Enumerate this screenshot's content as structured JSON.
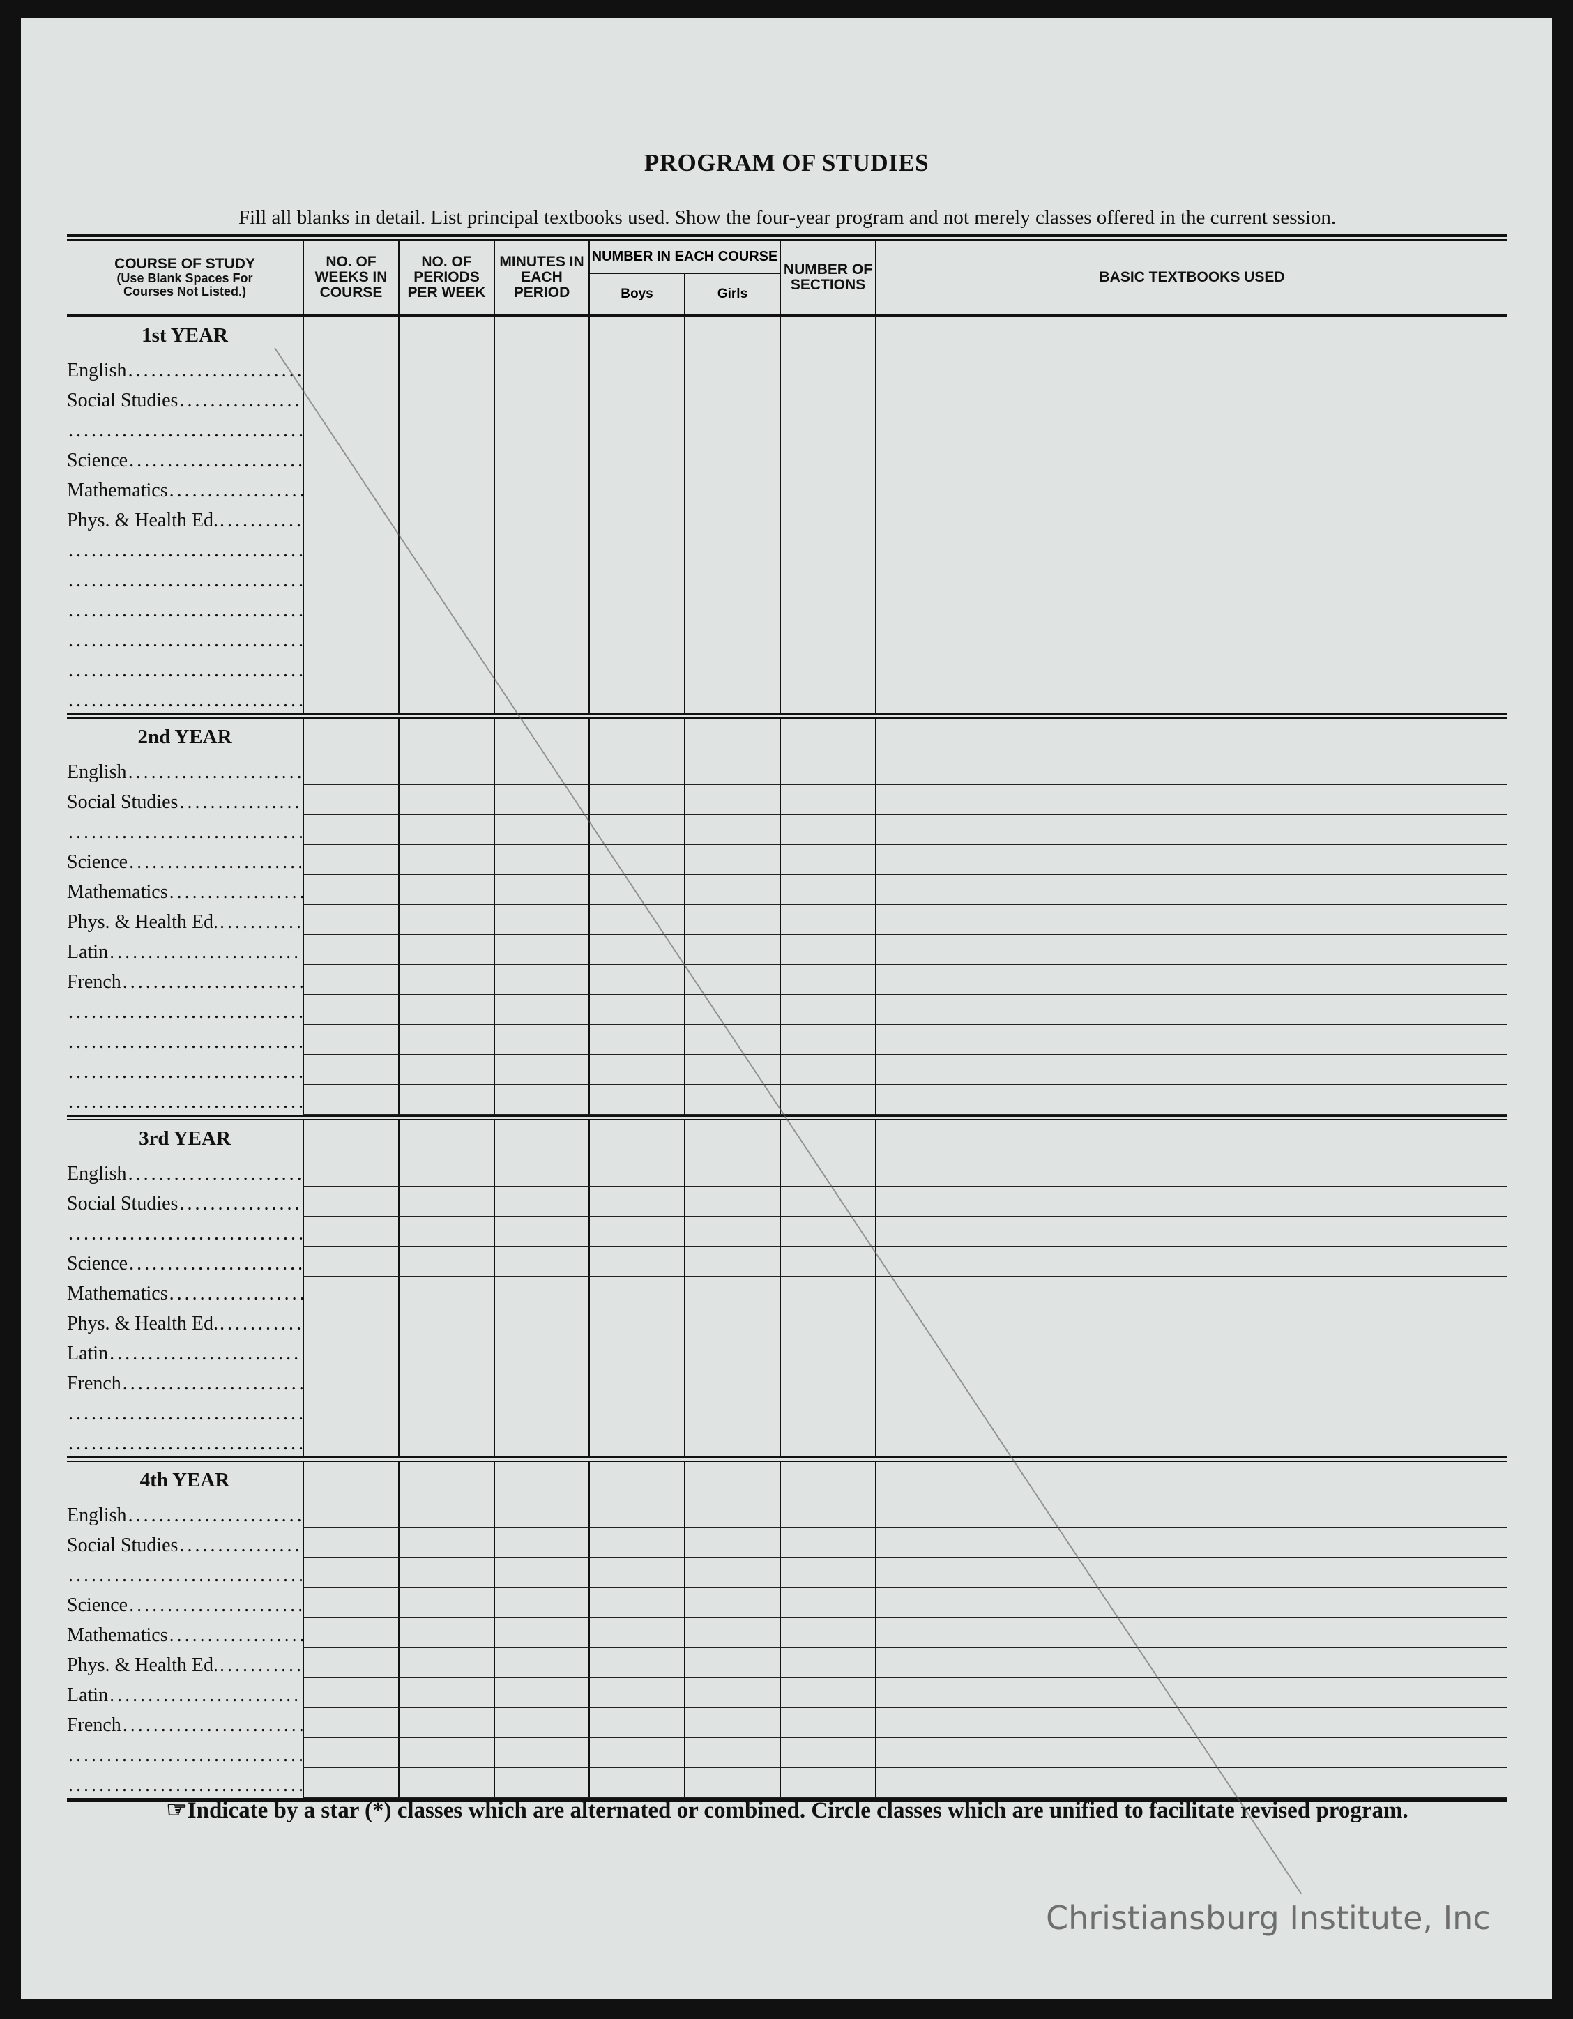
{
  "title": "PROGRAM OF STUDIES",
  "instruction": "Fill all blanks in detail.  List principal textbooks used.  Show the four-year program and not merely classes offered in the current session.",
  "headers": {
    "course_of_study": "COURSE OF STUDY",
    "course_of_study_note": "(Use Blank Spaces For Courses Not Listed.)",
    "weeks": "NO. OF WEEKS IN COURSE",
    "periods": "NO. OF PERIODS PER WEEK",
    "minutes": "MINUTES IN EACH PERIOD",
    "number_in_course": "NUMBER IN EACH COURSE",
    "boys": "Boys",
    "girls": "Girls",
    "sections": "NUMBER OF SECTIONS",
    "textbooks": "BASIC TEXTBOOKS USED"
  },
  "years": [
    {
      "label": "1st YEAR",
      "rows": [
        "English",
        "Social Studies",
        "",
        "Science",
        "Mathematics",
        "Phys. & Health Ed.",
        "",
        "",
        "",
        "",
        "",
        ""
      ]
    },
    {
      "label": "2nd YEAR",
      "rows": [
        "English",
        "Social Studies",
        "",
        "Science",
        "Mathematics",
        "Phys. & Health Ed.",
        "Latin",
        "French",
        "",
        "",
        "",
        ""
      ]
    },
    {
      "label": "3rd YEAR",
      "rows": [
        "English",
        "Social Studies",
        "",
        "Science",
        "Mathematics",
        "Phys. & Health Ed.",
        "Latin",
        "French",
        "",
        ""
      ]
    },
    {
      "label": "4th YEAR",
      "rows": [
        "English",
        "Social Studies",
        "",
        "Science",
        "Mathematics",
        "Phys. & Health Ed.",
        "Latin",
        "French",
        "",
        ""
      ]
    }
  ],
  "footnote": {
    "icon": "pointing-hand-icon",
    "text": "Indicate by a star (*) classes which are alternated or combined.  Circle classes which are unified to facilitate revised program."
  },
  "watermark": "Christiansburg Institute, Inc"
}
